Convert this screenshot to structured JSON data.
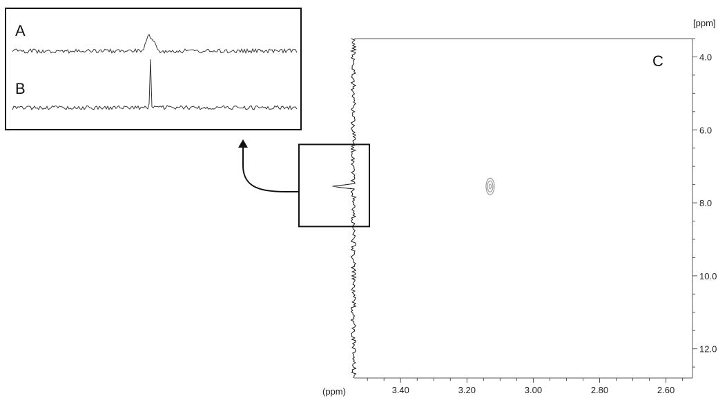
{
  "chart_data": {
    "type": "heatmap",
    "title": "",
    "panel_labels": {
      "inset_top": "A",
      "inset_bottom": "B",
      "main": "C"
    },
    "x_axis": {
      "unit_label": "(ppm)",
      "range": [
        3.54,
        2.52
      ],
      "reversed": true,
      "ticks": [
        3.4,
        3.2,
        3.0,
        2.8,
        2.6
      ],
      "tick_labels": [
        "3.40",
        "3.20",
        "3.00",
        "2.80",
        "2.60"
      ]
    },
    "y_axis": {
      "unit_label": "[ppm]",
      "range": [
        3.5,
        12.8
      ],
      "ticks": [
        4.0,
        6.0,
        8.0,
        10.0,
        12.0
      ],
      "tick_labels": [
        "4.0",
        "6.0",
        "8.0",
        "10.0",
        "12.0"
      ]
    },
    "cross_peaks": [
      {
        "x": 3.13,
        "y": 7.55
      }
    ],
    "projection_1d": {
      "peak_position": 7.55,
      "zoom_region_y": [
        6.4,
        8.65
      ]
    },
    "inset_traces": [
      {
        "label": "A",
        "peak_type": "broad multiplet"
      },
      {
        "label": "B",
        "peak_type": "sharp singlet"
      }
    ],
    "grid": false,
    "colors": {
      "ink": "#111111",
      "contour": "#9a9a9a",
      "trace": "#333333"
    }
  }
}
